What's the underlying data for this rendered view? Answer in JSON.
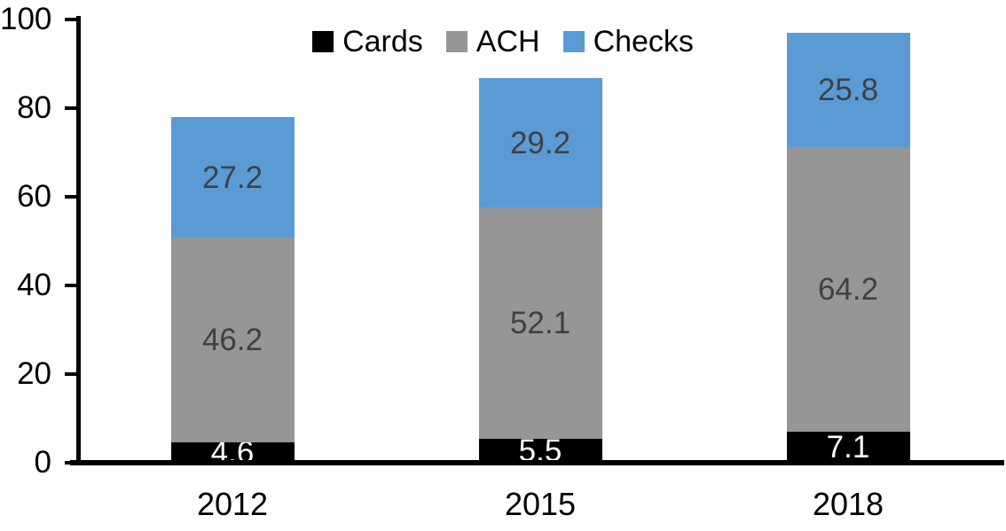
{
  "chart": {
    "background_color": "#ffffff",
    "axis_color": "#000000",
    "tick_label_color": "#000000",
    "legend_text_color": "#000000"
  },
  "chart_data": {
    "type": "bar",
    "stacked": true,
    "title": "",
    "xlabel": "",
    "ylabel": "",
    "categories": [
      "2012",
      "2015",
      "2018"
    ],
    "series": [
      {
        "name": "Cards",
        "color": "#000000",
        "label_color": "#ffffff",
        "values": [
          4.6,
          5.5,
          7.1
        ]
      },
      {
        "name": "ACH",
        "color": "#969696",
        "label_color": "#404040",
        "values": [
          46.2,
          52.1,
          64.2
        ]
      },
      {
        "name": "Checks",
        "color": "#5b9bd5",
        "label_color": "#404040",
        "values": [
          27.2,
          29.2,
          25.8
        ]
      }
    ],
    "data_labels_visible": true,
    "data_label_decimals": 1,
    "y_ticks": [
      0,
      20,
      40,
      60,
      80,
      100
    ],
    "ylim": [
      0,
      100
    ],
    "grid": false,
    "legend_position": "top-center"
  }
}
